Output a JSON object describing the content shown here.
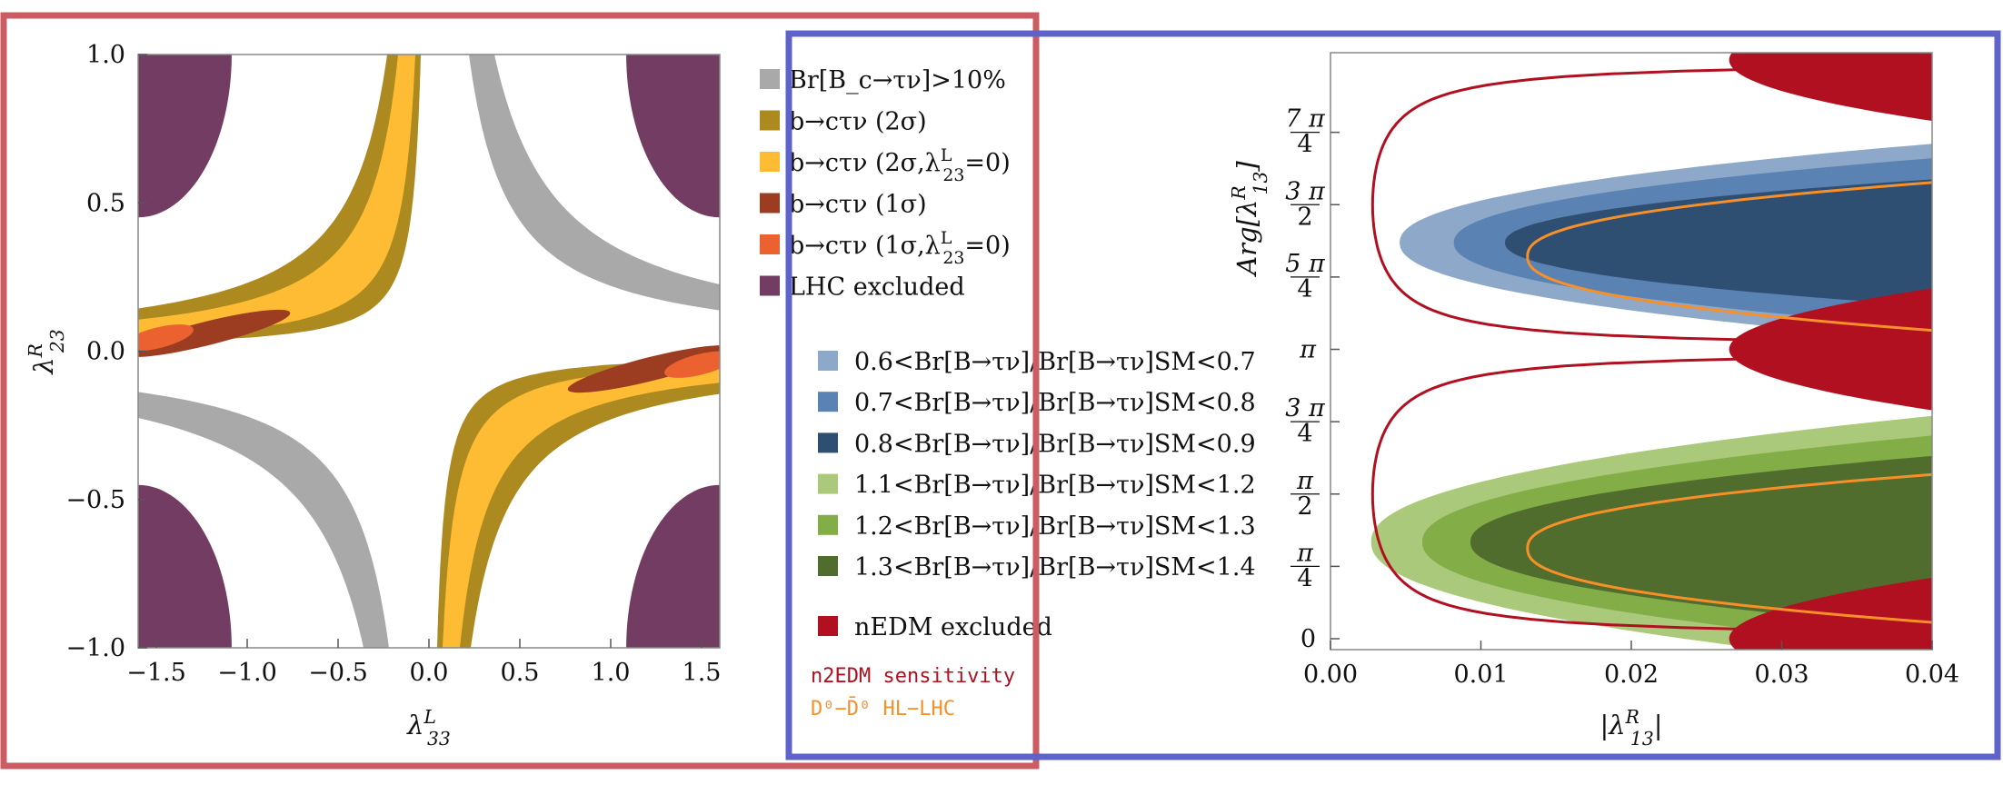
{
  "colors": {
    "frame_left": "#cc5c63",
    "frame_right": "#5f63c9",
    "gray": "#a9a9a9",
    "lhc": "#733c63",
    "dark_gold": "#ac8a20",
    "yellow": "#fdbc33",
    "brown": "#9c3d22",
    "orange": "#ec6130",
    "blue1": "#8ea8c9",
    "blue2": "#5a82b3",
    "blue3": "#2f4f72",
    "green1": "#abc97a",
    "green2": "#82ad47",
    "green3": "#506d2e",
    "nedm": "#b01020",
    "n2edm": "#b01020",
    "hllhc": "#f8902a"
  },
  "chart_data": [
    {
      "type": "area",
      "xlabel": "λ^L_33",
      "ylabel": "λ^R_23",
      "xlim": [
        -1.6,
        1.6
      ],
      "ylim": [
        -1.0,
        1.0
      ],
      "xticks": [
        "−1.5",
        "−1.0",
        "−0.5",
        "0.0",
        "0.5",
        "1.0",
        "1.5"
      ],
      "xtick_values": [
        -1.5,
        -1.0,
        -0.5,
        0.0,
        0.5,
        1.0,
        1.5
      ],
      "yticks": [
        "−1.0",
        "−0.5",
        "0.0",
        "0.5",
        "1.0"
      ],
      "ytick_values": [
        -1.0,
        -0.5,
        0.0,
        0.5,
        1.0
      ],
      "legend": [
        {
          "label": "Br[B_c→τν]>10%",
          "color": "gray"
        },
        {
          "label": "b→cτν (2σ)",
          "color": "dark_gold"
        },
        {
          "label": "b→cτν (2σ,λ^L_23=0)",
          "color": "yellow"
        },
        {
          "label": "b→cτν (1σ)",
          "color": "brown"
        },
        {
          "label": "b→cτν (1σ,λ^L_23=0)",
          "color": "orange"
        },
        {
          "label": "LHC excluded",
          "color": "lhc"
        }
      ],
      "regions": [
        {
          "name": "Br[B_c→τν]>10%",
          "shape": "hyperbolic band",
          "xy_product_range": [
            0.22,
            0.36
          ],
          "quadrants": [
            "x>0,y>0",
            "x<0,y<0"
          ]
        },
        {
          "name": "LHC excluded",
          "shape": "corner disk",
          "radius_from_corner": 0.83,
          "corners": [
            [
              -1.6,
              1.0
            ],
            [
              1.6,
              1.0
            ],
            [
              -1.6,
              -1.0
            ],
            [
              1.6,
              -1.0
            ]
          ]
        },
        {
          "name": "b→cτν (2σ)",
          "shape": "hyperbolic band",
          "xy_product_range": [
            -0.23,
            -0.045
          ],
          "quadrants": [
            "x<0,y>0",
            "x>0,y<0"
          ]
        },
        {
          "name": "b→cτν (2σ,λ^L_23=0)",
          "shape": "hyperbolic band",
          "xy_product_range": [
            -0.17,
            -0.075
          ],
          "quadrants": [
            "x<0,y>0",
            "x>0,y<0"
          ]
        },
        {
          "name": "b→cτν (1σ)",
          "shape": "ellipse",
          "centers": [
            [
              -1.22,
              0.06
            ],
            [
              1.22,
              -0.06
            ]
          ],
          "half_lengths": [
            0.47,
            0.04
          ],
          "angle_deg": 14
        },
        {
          "name": "b→cτν (1σ,λ^L_23=0)",
          "shape": "ellipse",
          "centers": [
            [
              -1.49,
              0.045
            ],
            [
              1.49,
              -0.045
            ]
          ],
          "half_lengths": [
            0.2,
            0.035
          ],
          "angle_deg": 14
        }
      ]
    },
    {
      "type": "area",
      "xlabel": "|λ^R_13|",
      "ylabel": "Arg[λ^R_13]",
      "xlim": [
        0.0,
        0.04
      ],
      "ylim": [
        0,
        6.2832
      ],
      "xticks": [
        "0.00",
        "0.01",
        "0.02",
        "0.03",
        "0.04"
      ],
      "xtick_values": [
        0.0,
        0.01,
        0.02,
        0.03,
        0.04
      ],
      "yticks": [
        {
          "num": "0",
          "den": "",
          "v": 0.0
        },
        {
          "num": "π",
          "den": "4",
          "v": 0.7854
        },
        {
          "num": "π",
          "den": "2",
          "v": 1.5708
        },
        {
          "num": "3 π",
          "den": "4",
          "v": 2.3562
        },
        {
          "num": "π",
          "den": "",
          "v": 3.1416
        },
        {
          "num": "5 π",
          "den": "4",
          "v": 3.927
        },
        {
          "num": "3 π",
          "den": "2",
          "v": 4.7124
        },
        {
          "num": "7 π",
          "den": "4",
          "v": 5.4978
        }
      ],
      "legend": [
        {
          "label": "0.6<Br[B→τν]/Br[B→τν]SM<0.7",
          "color": "blue1"
        },
        {
          "label": "0.7<Br[B→τν]/Br[B→τν]SM<0.8",
          "color": "blue2"
        },
        {
          "label": "0.8<Br[B→τν]/Br[B→τν]SM<0.9",
          "color": "blue3"
        },
        {
          "label": "1.1<Br[B→τν]/Br[B→τν]SM<1.2",
          "color": "green1"
        },
        {
          "label": "1.2<Br[B→τν]/Br[B→τν]SM<1.3",
          "color": "green2"
        },
        {
          "label": "1.3<Br[B→τν]/Br[B→τν]SM<1.4",
          "color": "green3"
        },
        {
          "label": "nEDM excluded",
          "color": "nedm"
        }
      ],
      "line_legend": [
        {
          "label": "n2EDM sensitivity",
          "color": "n2edm"
        },
        {
          "label": "D⁰−D̄⁰ HL−LHC",
          "color": "hllhc"
        }
      ],
      "regions": [
        {
          "name": "0.6–0.7",
          "center_arg": 4.3,
          "nose_abs": 0.0046,
          "half_height": 1.14
        },
        {
          "name": "0.7–0.8",
          "center_arg": 4.3,
          "nose_abs": 0.0082,
          "half_height": 0.98
        },
        {
          "name": "0.8–0.9",
          "center_arg": 4.3,
          "nose_abs": 0.0116,
          "half_height": 0.74
        },
        {
          "name": "1.1–1.2",
          "center_arg": 1.05,
          "nose_abs": 0.0027,
          "half_height": 1.45
        },
        {
          "name": "1.2–1.3",
          "center_arg": 1.05,
          "nose_abs": 0.0061,
          "half_height": 1.23
        },
        {
          "name": "1.3–1.4",
          "center_arg": 1.05,
          "nose_abs": 0.0093,
          "half_height": 1.0
        },
        {
          "name": "nEDM excluded",
          "center_args": [
            0.0,
            3.1416,
            6.2832
          ],
          "nose_abs": 0.0265
        }
      ],
      "curves": [
        {
          "name": "n2EDM sensitivity",
          "asymptotes": [
            0.0,
            3.1416,
            6.2832
          ],
          "min_abs": 0.0028
        },
        {
          "name": "D⁰−D̄⁰ HL−LHC",
          "center_args": [
            0.98,
            4.15
          ],
          "nose_abs": 0.0131
        }
      ]
    }
  ]
}
